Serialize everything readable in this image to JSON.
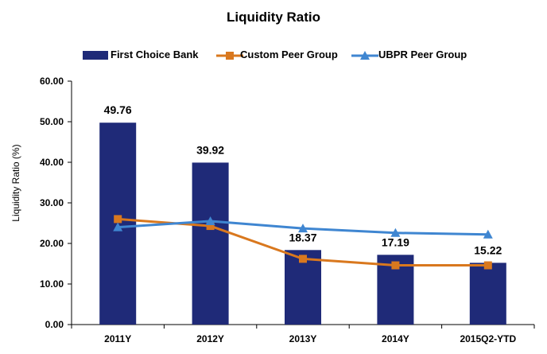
{
  "chart_data": {
    "type": "bar",
    "title": "Liquidity Ratio",
    "ylabel": "Liquidity Ratio (%)",
    "xlabel": "",
    "ylim": [
      0,
      60
    ],
    "yticks": [
      "0.00",
      "10.00",
      "20.00",
      "30.00",
      "40.00",
      "50.00",
      "60.00"
    ],
    "categories": [
      "2011Y",
      "2012Y",
      "2013Y",
      "2014Y",
      "2015Q2-YTD"
    ],
    "legend_position": "top",
    "grid": false,
    "series": [
      {
        "name": "First Choice Bank",
        "kind": "bar",
        "color": "#1f2a78",
        "values": [
          49.76,
          39.92,
          18.37,
          17.19,
          15.22
        ],
        "labels": [
          "49.76",
          "39.92",
          "18.37",
          "17.19",
          "15.22"
        ]
      },
      {
        "name": "Custom Peer Group",
        "kind": "line",
        "marker": "square",
        "color": "#d9781e",
        "values": [
          26.0,
          24.3,
          16.2,
          14.6,
          14.6
        ]
      },
      {
        "name": "UBPR Peer Group",
        "kind": "line",
        "marker": "triangle",
        "color": "#3f86d1",
        "values": [
          24.0,
          25.5,
          23.7,
          22.6,
          22.2
        ]
      }
    ]
  }
}
